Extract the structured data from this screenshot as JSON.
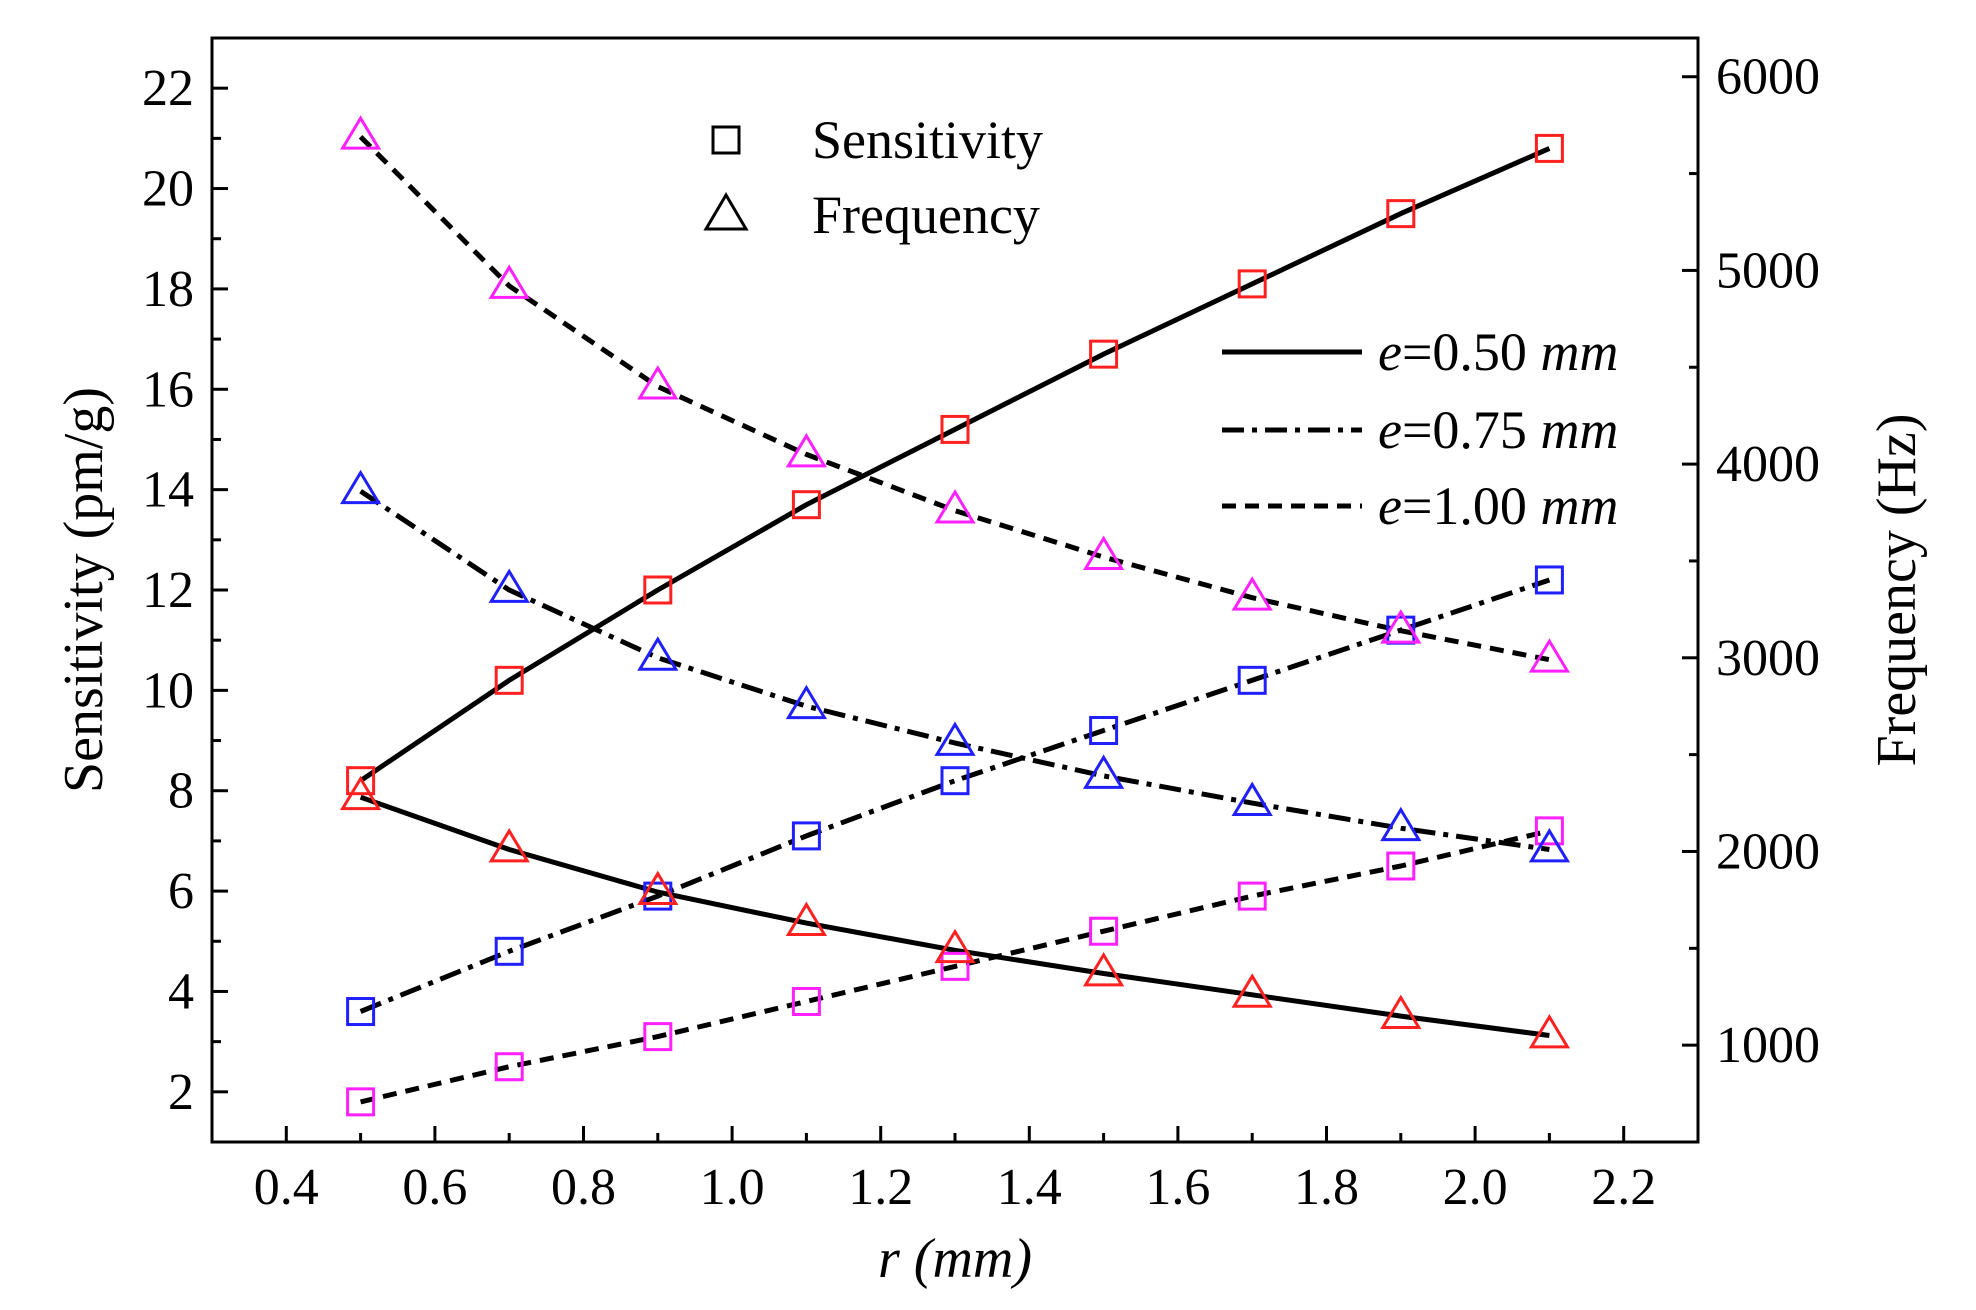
{
  "chart_data": {
    "type": "line",
    "xlabel": "r (mm)",
    "ylabel_left": "Sensitivity (pm/g)",
    "ylabel_right": "Frequency (Hz)",
    "xlim": [
      0.3,
      2.3
    ],
    "ylim_left": [
      1,
      23
    ],
    "ylim_right": [
      500,
      6200
    ],
    "x_ticks": [
      "0.4",
      "0.6",
      "0.8",
      "1.0",
      "1.2",
      "1.4",
      "1.6",
      "1.8",
      "2.0",
      "2.2"
    ],
    "y_left_ticks": [
      "2",
      "4",
      "6",
      "8",
      "10",
      "12",
      "14",
      "16",
      "18",
      "20",
      "22"
    ],
    "y_right_ticks": [
      "1000",
      "2000",
      "3000",
      "4000",
      "5000",
      "6000"
    ],
    "x": [
      0.5,
      0.7,
      0.9,
      1.1,
      1.3,
      1.5,
      1.7,
      1.9,
      2.1
    ],
    "marker_legend": [
      {
        "symbol": "square",
        "label": "Sensitivity"
      },
      {
        "symbol": "triangle",
        "label": "Frequency"
      }
    ],
    "line_legend": [
      {
        "style": "solid",
        "prefix": "e",
        "text": "=0.50 ",
        "unit": "mm"
      },
      {
        "style": "dashdot",
        "prefix": "e",
        "text": "=0.75 ",
        "unit": "mm"
      },
      {
        "style": "dashed",
        "prefix": "e",
        "text": "=1.00 ",
        "unit": "mm"
      }
    ],
    "series": [
      {
        "quantity": "sensitivity",
        "axis": "left",
        "e": "0.50",
        "style": "solid",
        "color": "#ff2020",
        "values": [
          8.2,
          10.2,
          12.0,
          13.7,
          15.2,
          16.7,
          18.1,
          19.5,
          20.8
        ]
      },
      {
        "quantity": "sensitivity",
        "axis": "left",
        "e": "0.75",
        "style": "dashdot",
        "color": "#2020ff",
        "values": [
          3.6,
          4.8,
          5.9,
          7.1,
          8.2,
          9.2,
          10.2,
          11.2,
          12.2
        ]
      },
      {
        "quantity": "sensitivity",
        "axis": "left",
        "e": "1.00",
        "style": "dashed",
        "color": "#ff20ff",
        "values": [
          1.8,
          2.5,
          3.1,
          3.8,
          4.5,
          5.2,
          5.9,
          6.5,
          7.2
        ]
      },
      {
        "quantity": "frequency",
        "axis": "right",
        "e": "0.50",
        "style": "solid",
        "color": "#ff2020",
        "values": [
          2280,
          2010,
          1790,
          1630,
          1490,
          1370,
          1260,
          1150,
          1050
        ]
      },
      {
        "quantity": "frequency",
        "axis": "right",
        "e": "0.75",
        "style": "dashdot",
        "color": "#2020ff",
        "values": [
          3860,
          3350,
          3000,
          2750,
          2560,
          2390,
          2250,
          2120,
          2010
        ]
      },
      {
        "quantity": "frequency",
        "axis": "right",
        "e": "1.00",
        "style": "dashed",
        "color": "#ff20ff",
        "values": [
          5690,
          4920,
          4400,
          4050,
          3760,
          3520,
          3310,
          3140,
          2990
        ]
      }
    ]
  }
}
